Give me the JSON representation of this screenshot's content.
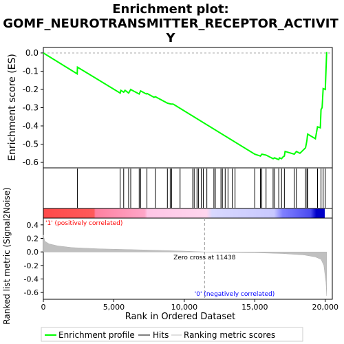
{
  "chart_data": {
    "type": "line",
    "title_line1": "Enrichment plot:",
    "title_line2": "GOMF_NEUROTRANSMITTER_RECEPTOR_ACTIVIT",
    "title_line3": "Y",
    "es_panel": {
      "ylabel": "Enrichment score (ES)",
      "ylim": [
        -0.63,
        0.03
      ],
      "yticks": [
        "0.0",
        "-0.1",
        "-0.2",
        "-0.3",
        "-0.4",
        "-0.5",
        "-0.6"
      ],
      "ytick_values": [
        0.0,
        -0.1,
        -0.2,
        -0.3,
        -0.4,
        -0.5,
        -0.6
      ],
      "line_color": "#00ff00",
      "points": [
        [
          0,
          0.0
        ],
        [
          2400,
          -0.115
        ],
        [
          2420,
          -0.078
        ],
        [
          5450,
          -0.22
        ],
        [
          5500,
          -0.205
        ],
        [
          5700,
          -0.215
        ],
        [
          5800,
          -0.205
        ],
        [
          6050,
          -0.22
        ],
        [
          6200,
          -0.2
        ],
        [
          6300,
          -0.205
        ],
        [
          6800,
          -0.225
        ],
        [
          6900,
          -0.208
        ],
        [
          7300,
          -0.225
        ],
        [
          7350,
          -0.222
        ],
        [
          7850,
          -0.243
        ],
        [
          7950,
          -0.24
        ],
        [
          8800,
          -0.275
        ],
        [
          9050,
          -0.28
        ],
        [
          9200,
          -0.28
        ],
        [
          15000,
          -0.555
        ],
        [
          15400,
          -0.565
        ],
        [
          15500,
          -0.555
        ],
        [
          15800,
          -0.56
        ],
        [
          16300,
          -0.58
        ],
        [
          16400,
          -0.575
        ],
        [
          16700,
          -0.585
        ],
        [
          16750,
          -0.575
        ],
        [
          16900,
          -0.58
        ],
        [
          17000,
          -0.57
        ],
        [
          17100,
          -0.565
        ],
        [
          17150,
          -0.54
        ],
        [
          17800,
          -0.555
        ],
        [
          17950,
          -0.54
        ],
        [
          18200,
          -0.55
        ],
        [
          18600,
          -0.52
        ],
        [
          18700,
          -0.48
        ],
        [
          18750,
          -0.445
        ],
        [
          19300,
          -0.47
        ],
        [
          19450,
          -0.405
        ],
        [
          19650,
          -0.41
        ],
        [
          19700,
          -0.31
        ],
        [
          19780,
          -0.3
        ],
        [
          19850,
          -0.195
        ],
        [
          20000,
          -0.2
        ],
        [
          20100,
          0.005
        ]
      ]
    },
    "hits": [
      2420,
      5450,
      5700,
      6050,
      6200,
      6800,
      6900,
      7350,
      7950,
      8800,
      9000,
      9100,
      9700,
      10600,
      10700,
      10900,
      11000,
      11200,
      11350,
      11600,
      12100,
      12200,
      12600,
      12700,
      12900,
      13100,
      13400,
      13600,
      15000,
      15400,
      15500,
      15800,
      16300,
      16400,
      16700,
      16900,
      17100,
      17800,
      17950,
      18600,
      18700,
      18750,
      19450,
      19700,
      19850,
      20000
    ],
    "ranking_panel": {
      "ylabel": "Ranked list metric (Signal2Noise)",
      "ylim": [
        -0.7,
        0.5
      ],
      "yticks": [
        "0.4",
        "0.2",
        "0.0",
        "-0.2",
        "-0.4",
        "-0.6"
      ],
      "ytick_values": [
        0.4,
        0.2,
        0.0,
        -0.2,
        -0.4,
        -0.6
      ],
      "fill_color": "#c0c0c0",
      "points": [
        [
          0,
          0.25
        ],
        [
          100,
          0.16
        ],
        [
          400,
          0.12
        ],
        [
          1000,
          0.09
        ],
        [
          2000,
          0.065
        ],
        [
          4000,
          0.045
        ],
        [
          7000,
          0.03
        ],
        [
          10000,
          0.012
        ],
        [
          11438,
          0.0
        ],
        [
          13000,
          -0.006
        ],
        [
          15000,
          -0.012
        ],
        [
          17000,
          -0.025
        ],
        [
          18500,
          -0.045
        ],
        [
          19300,
          -0.075
        ],
        [
          19700,
          -0.11
        ],
        [
          19900,
          -0.2
        ],
        [
          20050,
          -0.45
        ],
        [
          20100,
          -0.65
        ]
      ],
      "zero_cross_label": "Zero cross at 11438",
      "zero_cross": 11438,
      "pos_label": "'1' (positively correlated)",
      "neg_label": "'0' (negatively correlated)",
      "pos_label_color": "#ff0000",
      "neg_label_color": "#0000ff"
    },
    "xaxis": {
      "label": "Rank in Ordered Dataset",
      "xlim": [
        0,
        20500
      ],
      "ticks": [
        "0",
        "5,000",
        "10,000",
        "15,000",
        "20,000"
      ],
      "tick_values": [
        0,
        5000,
        10000,
        15000,
        20000
      ]
    },
    "legend": {
      "placement": "bottom",
      "items": [
        {
          "label": "Enrichment profile",
          "color": "#00ff00"
        },
        {
          "label": "Hits",
          "color": "#000000"
        },
        {
          "label": "Ranking metric scores",
          "color": "#c0c0c0"
        }
      ]
    }
  }
}
